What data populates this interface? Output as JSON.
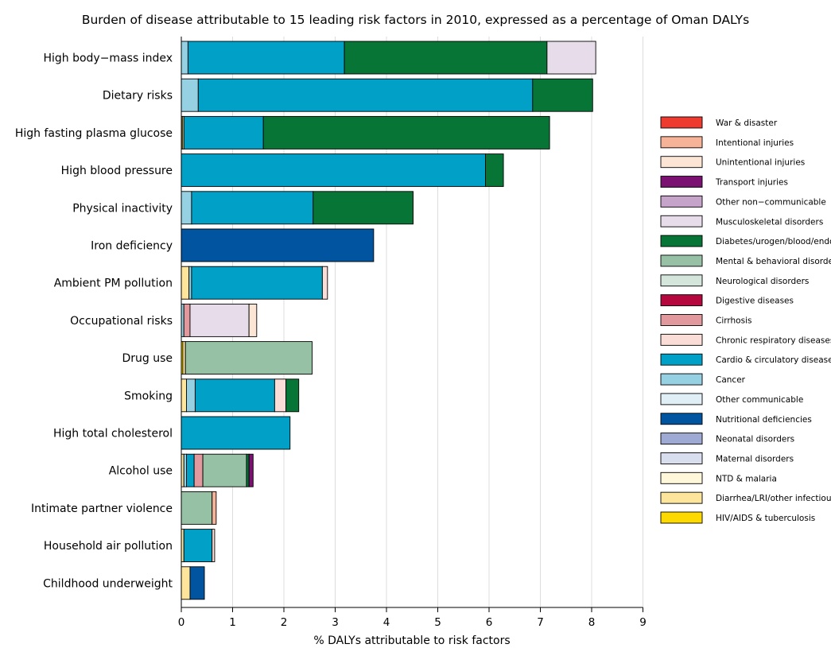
{
  "chart_data": {
    "type": "bar",
    "orientation": "horizontal",
    "stacked": true,
    "title": "Burden of disease attributable to 15 leading risk factors in 2010, expressed as a percentage of Oman DALYs",
    "xlabel": "% DALYs attributable to risk factors",
    "ylabel": "",
    "xlim": [
      0,
      9
    ],
    "xticks": [
      0,
      1,
      2,
      3,
      4,
      5,
      6,
      7,
      8,
      9
    ],
    "grid": "vertical",
    "legend_position": "right",
    "categories": [
      "High body−mass index",
      "Dietary risks",
      "High fasting plasma glucose",
      "High blood pressure",
      "Physical inactivity",
      "Iron deficiency",
      "Ambient PM pollution",
      "Occupational risks",
      "Drug use",
      "Smoking",
      "High total cholesterol",
      "Alcohol use",
      "Intimate partner violence",
      "Household air pollution",
      "Childhood underweight"
    ],
    "series": [
      {
        "name": "War & disaster",
        "color": "#ee3b2f",
        "values": [
          0,
          0,
          0,
          0,
          0,
          0,
          0,
          0,
          0,
          0,
          0,
          0,
          0,
          0,
          0
        ]
      },
      {
        "name": "Intentional injuries",
        "color": "#f7b398",
        "values": [
          0,
          0,
          0,
          0,
          0,
          0,
          0,
          0,
          0,
          0,
          0,
          0,
          0.08,
          0,
          0
        ]
      },
      {
        "name": "Unintentional injuries",
        "color": "#fde5d6",
        "values": [
          0,
          0,
          0,
          0,
          0,
          0,
          0,
          0.15,
          0,
          0,
          0,
          0,
          0,
          0,
          0
        ]
      },
      {
        "name": "Transport injuries",
        "color": "#7b1170",
        "values": [
          0,
          0,
          0,
          0,
          0,
          0,
          0,
          0,
          0,
          0,
          0,
          0.08,
          0,
          0,
          0
        ]
      },
      {
        "name": "Other non−communicable",
        "color": "#c6a3c9",
        "values": [
          0,
          0,
          0,
          0,
          0,
          0,
          0,
          0,
          0,
          0,
          0,
          0,
          0,
          0,
          0
        ]
      },
      {
        "name": "Musculoskeletal disorders",
        "color": "#e7dce9",
        "values": [
          0.95,
          0,
          0,
          0,
          0,
          0,
          0,
          1.15,
          0,
          0,
          0,
          0,
          0,
          0,
          0
        ]
      },
      {
        "name": "Diabetes/urogen/blood/endo",
        "color": "#077536",
        "values": [
          3.95,
          1.17,
          5.58,
          0.35,
          1.95,
          0,
          0,
          0,
          0,
          0.25,
          0,
          0.05,
          0,
          0,
          0
        ]
      },
      {
        "name": "Mental & behavioral disorders",
        "color": "#96c1a4",
        "values": [
          0,
          0,
          0,
          0,
          0,
          0,
          0,
          0,
          2.47,
          0,
          0,
          0.85,
          0.6,
          0,
          0
        ]
      },
      {
        "name": "Neurological disorders",
        "color": "#d4e6dc",
        "values": [
          0,
          0,
          0,
          0,
          0,
          0,
          0,
          0,
          0,
          0,
          0,
          0,
          0,
          0,
          0
        ]
      },
      {
        "name": "Digestive diseases",
        "color": "#b4083f",
        "values": [
          0,
          0,
          0,
          0,
          0,
          0,
          0,
          0,
          0,
          0,
          0,
          0,
          0,
          0,
          0
        ]
      },
      {
        "name": "Cirrhosis",
        "color": "#e1999e",
        "values": [
          0,
          0,
          0,
          0,
          0,
          0,
          0,
          0.12,
          0,
          0,
          0,
          0.17,
          0,
          0,
          0
        ]
      },
      {
        "name": "Chronic respiratory diseases",
        "color": "#f9ddd6",
        "values": [
          0,
          0,
          0,
          0,
          0,
          0,
          0.1,
          0,
          0,
          0.22,
          0,
          0,
          0,
          0.05,
          0
        ]
      },
      {
        "name": "Cardio & circulatory diseases",
        "color": "#00a0c7",
        "values": [
          3.05,
          6.52,
          1.55,
          5.93,
          2.37,
          0,
          2.55,
          0,
          0,
          1.55,
          2.12,
          0.15,
          0,
          0.55,
          0
        ]
      },
      {
        "name": "Cancer",
        "color": "#95d1e3",
        "values": [
          0.13,
          0.33,
          0,
          0,
          0.2,
          0,
          0.05,
          0.05,
          0,
          0.17,
          0,
          0.05,
          0,
          0,
          0
        ]
      },
      {
        "name": "Other communicable",
        "color": "#e0eff5",
        "values": [
          0,
          0,
          0,
          0,
          0,
          0,
          0,
          0,
          0,
          0,
          0,
          0,
          0,
          0,
          0
        ]
      },
      {
        "name": "Nutritional deficiencies",
        "color": "#0054a0",
        "values": [
          0,
          0,
          0,
          0,
          0,
          3.75,
          0,
          0,
          0,
          0,
          0,
          0,
          0,
          0,
          0.28
        ]
      },
      {
        "name": "Neonatal disorders",
        "color": "#9eaad4",
        "values": [
          0,
          0,
          0,
          0,
          0,
          0,
          0,
          0,
          0,
          0,
          0,
          0,
          0,
          0,
          0
        ]
      },
      {
        "name": "Maternal disorders",
        "color": "#d9deee",
        "values": [
          0,
          0,
          0,
          0,
          0,
          0,
          0,
          0,
          0,
          0,
          0,
          0,
          0,
          0,
          0
        ]
      },
      {
        "name": "NTD & malaria",
        "color": "#fef7d9",
        "values": [
          0,
          0,
          0,
          0,
          0,
          0,
          0,
          0,
          0,
          0,
          0,
          0,
          0,
          0,
          0
        ]
      },
      {
        "name": "Diarrhea/LRI/other infectious",
        "color": "#fde69b",
        "values": [
          0,
          0,
          0.03,
          0,
          0,
          0,
          0.15,
          0,
          0.05,
          0.1,
          0,
          0.05,
          0,
          0.05,
          0.17
        ]
      },
      {
        "name": "HIV/AIDS & tuberculosis",
        "color": "#fdd900",
        "values": [
          0,
          0,
          0.02,
          0,
          0,
          0,
          0,
          0,
          0.03,
          0,
          0,
          0,
          0,
          0,
          0
        ]
      }
    ]
  }
}
